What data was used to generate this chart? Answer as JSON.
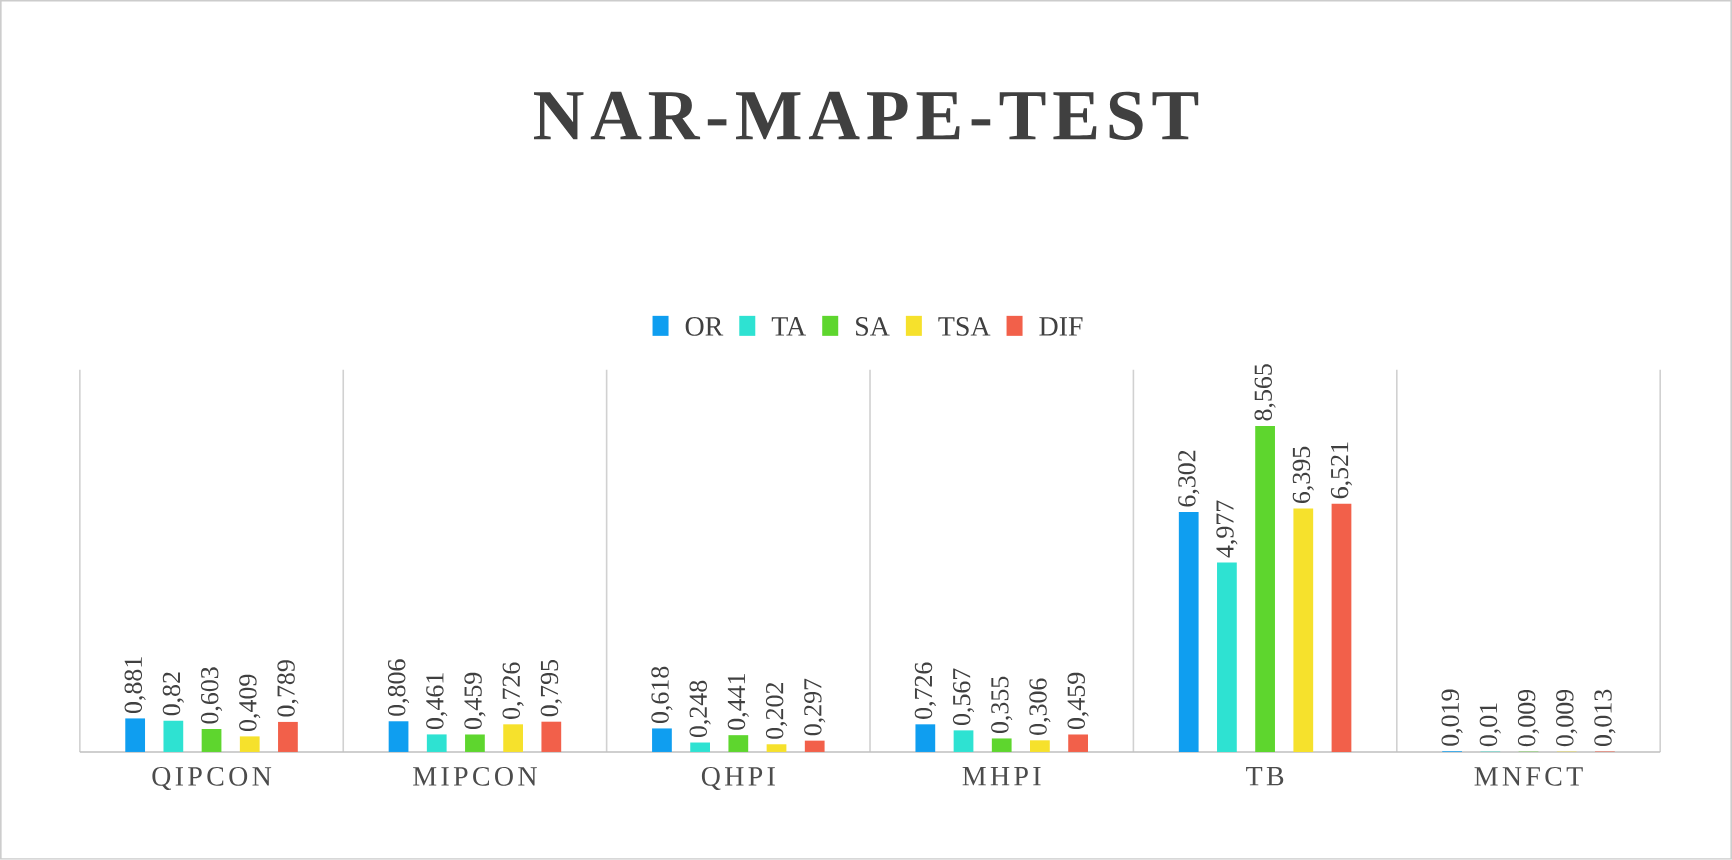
{
  "chart_data": {
    "type": "bar",
    "title": "NAR-MAPE-TEST",
    "categories": [
      "QIPCON",
      "MIPCON",
      "QHPI",
      "MHPI",
      "TB",
      "MNFCT"
    ],
    "legend": "top",
    "grid": "x",
    "series": [
      {
        "name": "OR",
        "color": "#0f9ef0",
        "values": [
          0.881,
          0.806,
          0.618,
          0.726,
          6.302,
          0.019
        ],
        "value_labels": [
          "0,881",
          "0,806",
          "0,618",
          "0,726",
          "6,302",
          "0,019"
        ]
      },
      {
        "name": "TA",
        "color": "#2ee2d2",
        "values": [
          0.82,
          0.461,
          0.248,
          0.567,
          4.977,
          0.01
        ],
        "value_labels": [
          "0,82",
          "0,461",
          "0,248",
          "0,567",
          "4,977",
          "0,01"
        ]
      },
      {
        "name": "SA",
        "color": "#5ed62e",
        "values": [
          0.603,
          0.459,
          0.441,
          0.355,
          8.565,
          0.009
        ],
        "value_labels": [
          "0,603",
          "0,459",
          "0,441",
          "0,355",
          "8,565",
          "0,009"
        ]
      },
      {
        "name": "TSA",
        "color": "#f6e12c",
        "values": [
          0.409,
          0.726,
          0.202,
          0.306,
          6.395,
          0.009
        ],
        "value_labels": [
          "0,409",
          "0,726",
          "0,202",
          "0,306",
          "6,395",
          "0,009"
        ]
      },
      {
        "name": "DIF",
        "color": "#f2604a",
        "values": [
          0.789,
          0.795,
          0.297,
          0.459,
          6.521,
          0.013
        ],
        "value_labels": [
          "0,789",
          "0,795",
          "0,297",
          "0,459",
          "6,521",
          "0,013"
        ]
      }
    ]
  }
}
